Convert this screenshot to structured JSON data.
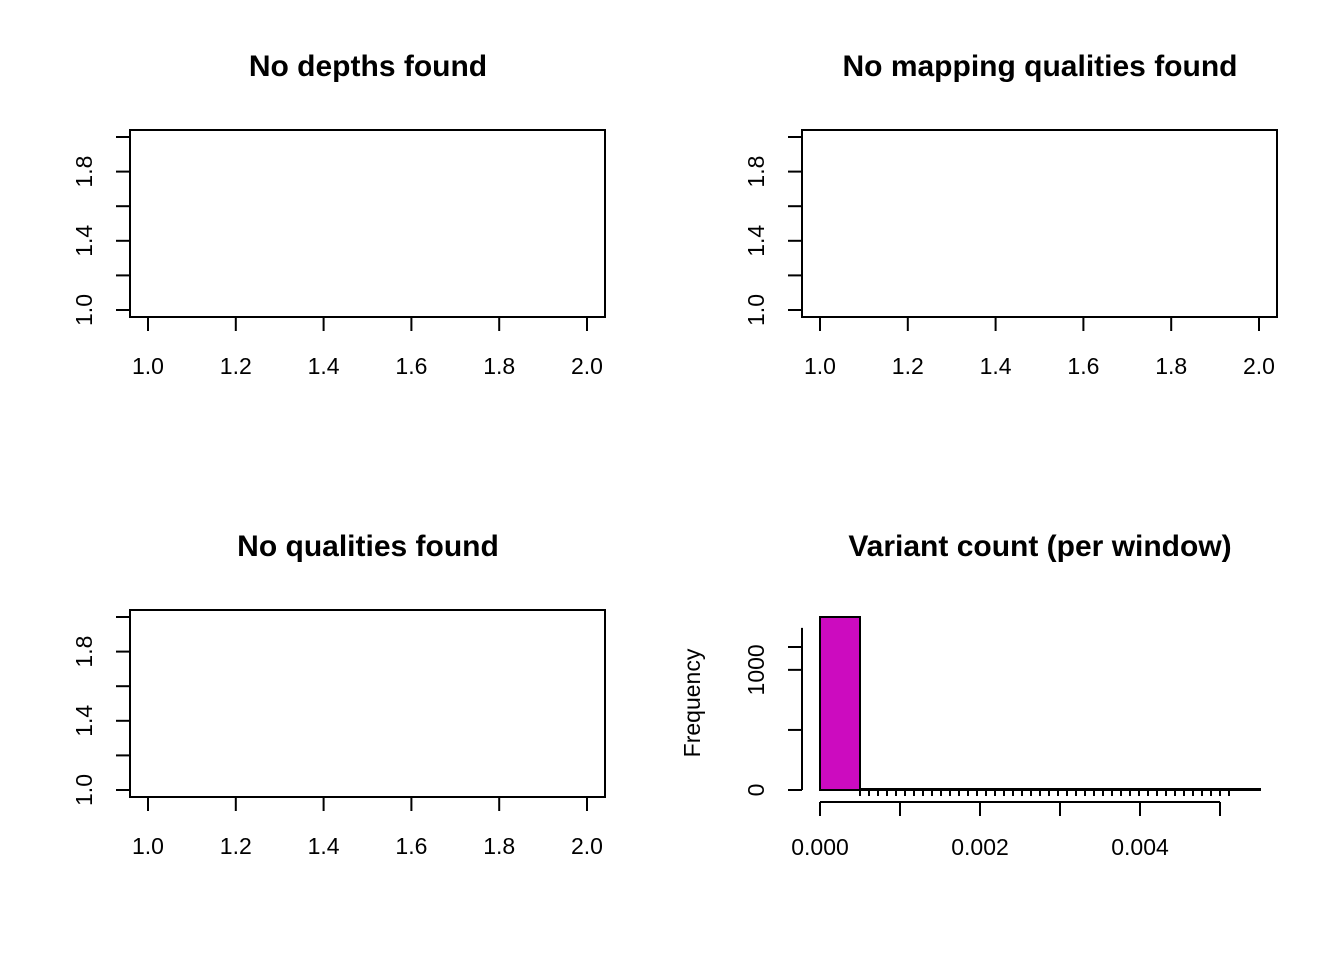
{
  "chart_data": [
    {
      "type": "scatter",
      "title": "No depths found",
      "xlabel": "",
      "ylabel": "",
      "xlim": [
        1.0,
        2.0
      ],
      "ylim": [
        1.0,
        2.0
      ],
      "xticks": [
        "1.0",
        "1.2",
        "1.4",
        "1.6",
        "1.8",
        "2.0"
      ],
      "yticks": [
        "1.0",
        "1.4",
        "1.8"
      ],
      "x": [],
      "y": []
    },
    {
      "type": "scatter",
      "title": "No mapping qualities found",
      "xlabel": "",
      "ylabel": "",
      "xlim": [
        1.0,
        2.0
      ],
      "ylim": [
        1.0,
        2.0
      ],
      "xticks": [
        "1.0",
        "1.2",
        "1.4",
        "1.6",
        "1.8",
        "2.0"
      ],
      "yticks": [
        "1.0",
        "1.4",
        "1.8"
      ],
      "x": [],
      "y": []
    },
    {
      "type": "scatter",
      "title": "No qualities found",
      "xlabel": "",
      "ylabel": "",
      "xlim": [
        1.0,
        2.0
      ],
      "ylim": [
        1.0,
        2.0
      ],
      "xticks": [
        "1.0",
        "1.2",
        "1.4",
        "1.6",
        "1.8",
        "2.0"
      ],
      "yticks": [
        "1.0",
        "1.4",
        "1.8"
      ],
      "x": [],
      "y": []
    },
    {
      "type": "bar",
      "title": "Variant count (per window)",
      "xlabel": "",
      "ylabel": "Frequency",
      "xlim": [
        0.0,
        0.0055
      ],
      "ylim": [
        0,
        1450
      ],
      "xticks": [
        "0.000",
        "0.002",
        "0.004"
      ],
      "yticks": [
        "0",
        "1000"
      ],
      "bin_width": 0.0005,
      "bins": [
        {
          "start": 0.0,
          "end": 0.0005,
          "count": 1440
        },
        {
          "start": 0.0005,
          "end": 0.001,
          "count": 2
        },
        {
          "start": 0.001,
          "end": 0.0015,
          "count": 0
        },
        {
          "start": 0.0015,
          "end": 0.002,
          "count": 1
        },
        {
          "start": 0.002,
          "end": 0.0025,
          "count": 4
        },
        {
          "start": 0.0025,
          "end": 0.003,
          "count": 3
        },
        {
          "start": 0.003,
          "end": 0.0035,
          "count": 2
        },
        {
          "start": 0.0035,
          "end": 0.004,
          "count": 2
        },
        {
          "start": 0.004,
          "end": 0.0045,
          "count": 1
        },
        {
          "start": 0.0045,
          "end": 0.005,
          "count": 1
        },
        {
          "start": 0.005,
          "end": 0.0055,
          "count": 0
        }
      ],
      "bar_color": "#CC0BBF"
    }
  ]
}
